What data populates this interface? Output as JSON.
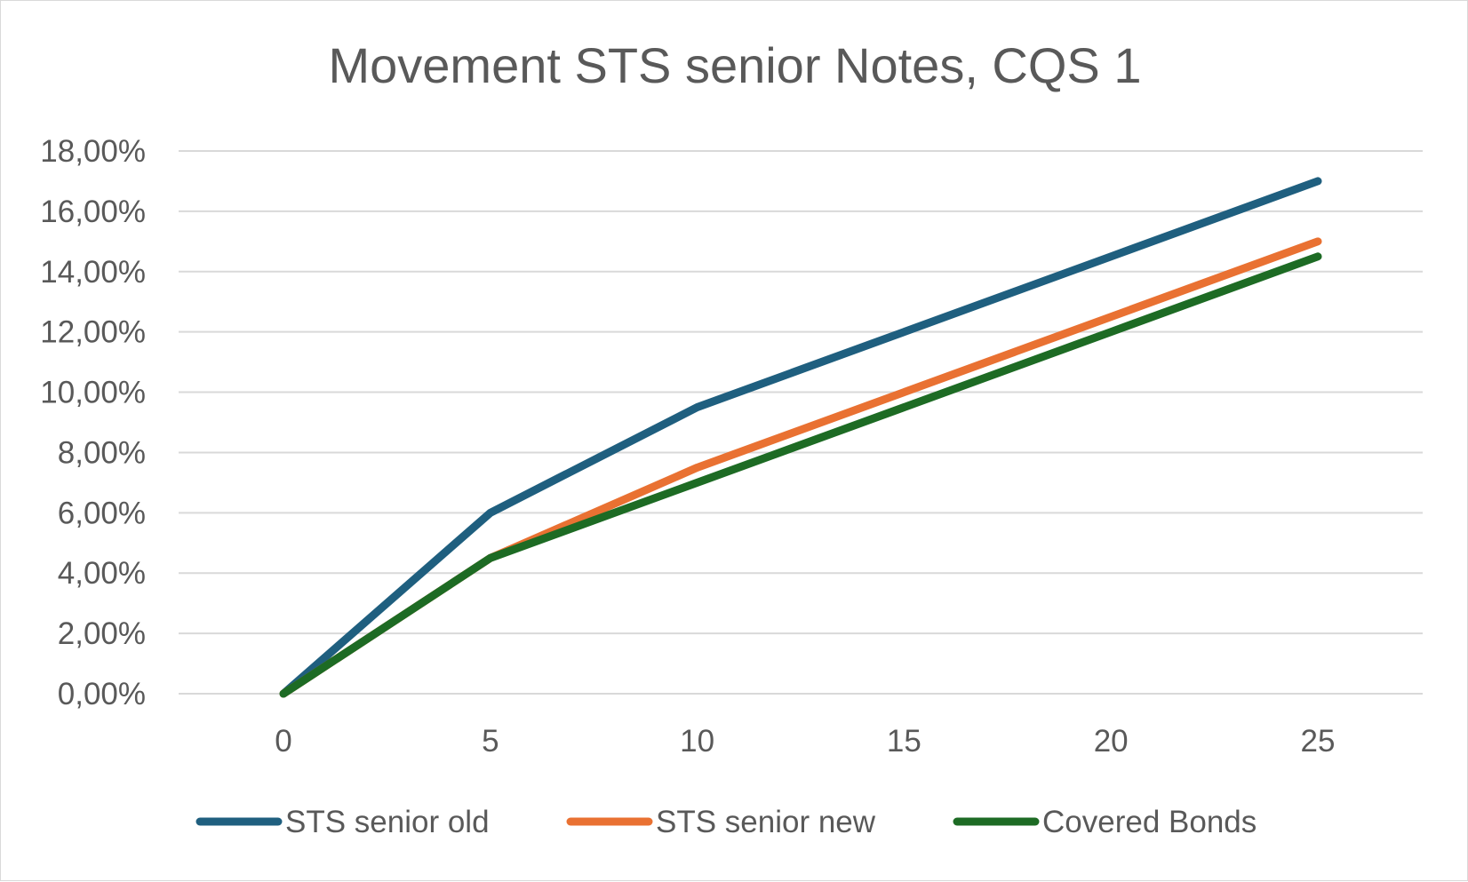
{
  "chart_data": {
    "type": "line",
    "title": "Movement STS senior Notes, CQS 1",
    "xlabel": "",
    "ylabel": "",
    "x": [
      0,
      5,
      10,
      15,
      20,
      25
    ],
    "x_tick_labels": [
      "0",
      "5",
      "10",
      "15",
      "20",
      "25"
    ],
    "ylim": [
      0,
      18
    ],
    "y_ticks": [
      0,
      2,
      4,
      6,
      8,
      10,
      12,
      14,
      16,
      18
    ],
    "y_tick_labels": [
      "0,00%",
      "2,00%",
      "4,00%",
      "6,00%",
      "8,00%",
      "10,00%",
      "12,00%",
      "14,00%",
      "16,00%",
      "18,00%"
    ],
    "y_unit": "%",
    "grid": "horizontal",
    "legend_position": "bottom",
    "series": [
      {
        "name": "STS senior old",
        "color": "#1f5f7f",
        "values": [
          0,
          6.0,
          9.5,
          12.0,
          14.5,
          17.0
        ]
      },
      {
        "name": "STS senior new",
        "color": "#e97132",
        "values": [
          0,
          4.5,
          7.5,
          10.0,
          12.5,
          15.0
        ]
      },
      {
        "name": "Covered Bonds",
        "color": "#1d6b24",
        "values": [
          0,
          4.5,
          7.0,
          9.5,
          12.0,
          14.5
        ]
      }
    ]
  }
}
